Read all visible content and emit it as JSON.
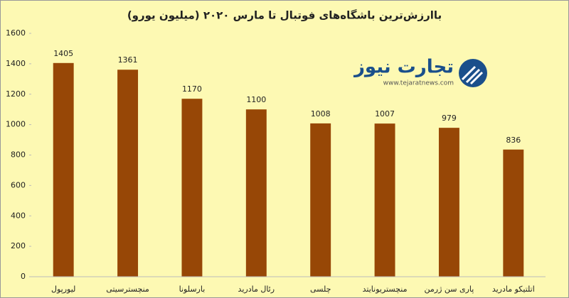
{
  "chart_data": {
    "type": "bar",
    "title": "باارزش‌ترین باشگاه‌های فوتبال تا مارس ۲۰۲۰ (میلیون یورو)",
    "categories": [
      "لیورپول",
      "منچسترسیتی",
      "بارسلونا",
      "رئال مادرید",
      "چلسی",
      "منچستریونایتد",
      "پاری سن ژرمن",
      "اتلتیکو مادرید"
    ],
    "values": [
      1405,
      1361,
      1170,
      1100,
      1008,
      1007,
      979,
      836
    ],
    "color": "#974706",
    "ylim": [
      0,
      1600
    ],
    "yticks": [
      0,
      200,
      400,
      600,
      800,
      1000,
      1200,
      1400,
      1600
    ],
    "grid": false,
    "watermark": {
      "brand": "تجارت نیوز",
      "url": "www.tejaratnews.com"
    }
  }
}
